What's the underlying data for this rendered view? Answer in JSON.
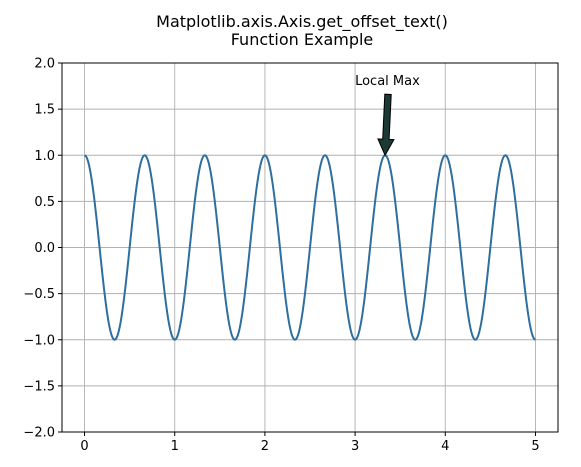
{
  "chart_data": {
    "type": "line",
    "title_lines": [
      "Matplotlib.axis.Axis.get_offset_text()",
      "Function Example"
    ],
    "xlabel": "",
    "ylabel": "",
    "xlim": [
      -0.25,
      5.25
    ],
    "ylim": [
      -2.0,
      2.0
    ],
    "x_ticks": [
      0,
      1,
      2,
      3,
      4,
      5
    ],
    "x_tick_labels": [
      "0",
      "1",
      "2",
      "3",
      "4",
      "5"
    ],
    "y_ticks": [
      -2.0,
      -1.5,
      -1.0,
      -0.5,
      0.0,
      0.5,
      1.0,
      1.5,
      2.0
    ],
    "y_tick_labels": [
      "−2.0",
      "−1.5",
      "−1.0",
      "−0.5",
      "0.0",
      "0.5",
      "1.0",
      "1.5",
      "2.0"
    ],
    "grid": true,
    "series": [
      {
        "function": "cos(3*pi*x)",
        "x_start": 0,
        "x_end": 5,
        "samples": 500,
        "color": "#2e6f9e",
        "linewidth": 2
      }
    ],
    "annotations": [
      {
        "text": "Local Max",
        "xy": [
          3.333,
          1.0
        ],
        "xytext": [
          3.0,
          1.75
        ],
        "arrow_color": "#000000",
        "arrow_fill": "#1a3a33"
      }
    ]
  }
}
